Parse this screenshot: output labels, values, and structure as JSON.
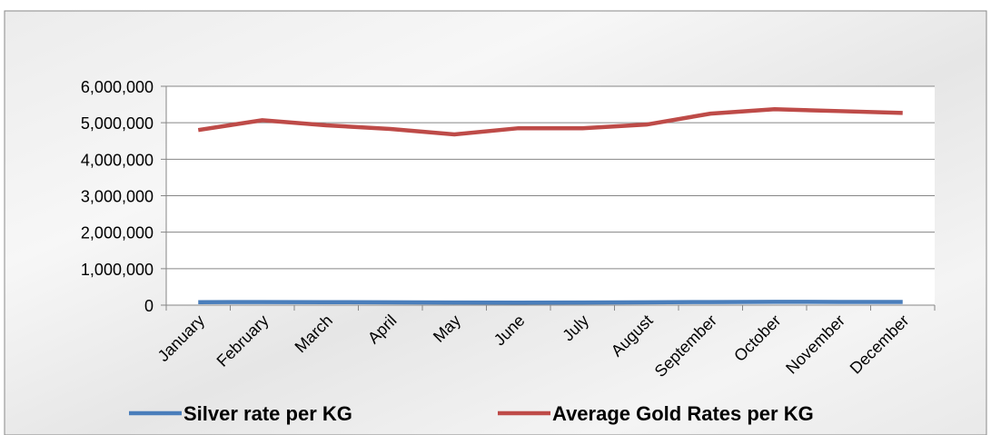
{
  "chart_data": {
    "type": "line",
    "categories": [
      "January",
      "February",
      "March",
      "April",
      "May",
      "June",
      "July",
      "August",
      "September",
      "October",
      "November",
      "December"
    ],
    "series": [
      {
        "name": "Silver rate per KG",
        "color": "#4a7ebb",
        "values": [
          80000,
          85000,
          82000,
          78000,
          72000,
          70000,
          72000,
          78000,
          85000,
          90000,
          88000,
          86000
        ]
      },
      {
        "name": "Average Gold Rates per KG",
        "color": "#be4b48",
        "values": [
          4800000,
          5070000,
          4930000,
          4830000,
          4680000,
          4850000,
          4850000,
          4950000,
          5250000,
          5370000,
          5320000,
          5270000
        ]
      }
    ],
    "ylim": [
      0,
      6000000
    ],
    "yticks": [
      0,
      {
        "value": 1000000,
        "label": "1,000,000"
      },
      {
        "value": 2000000,
        "label": "2,000,000"
      },
      {
        "value": 3000000,
        "label": "3,000,000"
      },
      {
        "value": 4000000,
        "label": "4,000,000"
      },
      {
        "value": 5000000,
        "label": "5,000,000"
      },
      {
        "value": 6000000,
        "label": "6,000,000"
      }
    ],
    "grid": true
  }
}
